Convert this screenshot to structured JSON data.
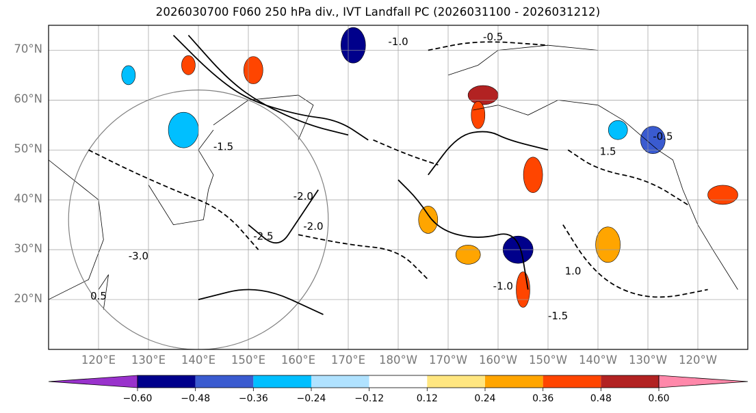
{
  "title": "2026030700 F060 250 hPa div., IVT Landfall PC (2026031100 - 2026031212)",
  "chart_data": {
    "type": "heatmap",
    "title": "2026030700 F060 250 hPa div., IVT Landfall PC (2026031100 - 2026031212)",
    "map": {
      "projection": "PlateCarree",
      "lon_range_east": [
        110,
        250
      ],
      "lat_range": [
        10,
        75
      ],
      "grid": true
    },
    "lat_ticks": [
      "20°N",
      "30°N",
      "40°N",
      "50°N",
      "60°N",
      "70°N"
    ],
    "lon_ticks": [
      "120°E",
      "130°E",
      "140°E",
      "150°E",
      "160°E",
      "170°E",
      "180°W",
      "170°W",
      "160°W",
      "150°W",
      "140°W",
      "130°W",
      "120°W"
    ],
    "colorbar": {
      "orientation": "horizontal",
      "extend": "both",
      "levels": [
        -0.72,
        -0.6,
        -0.48,
        -0.36,
        -0.24,
        -0.12,
        0.12,
        0.24,
        0.36,
        0.48,
        0.6,
        0.72
      ],
      "colors": [
        "#9932cc",
        "#00008b",
        "#3a5bd0",
        "#00bfff",
        "#b0e2ff",
        "#ffffff",
        "#ffe680",
        "#ffa500",
        "#ff4500",
        "#b22222",
        "#ff88aa"
      ],
      "tick_labels": [
        "−0.60",
        "−0.48",
        "−0.36",
        "−0.24",
        "−0.12",
        "0.12",
        "0.24",
        "0.36",
        "0.48",
        "0.60"
      ]
    },
    "contour_labels": [
      "-0.5",
      "-1.0",
      "-1.5",
      "-2.0",
      "-2.5",
      "-3.0",
      "0.5",
      "1.0",
      "1.5"
    ],
    "shaded_regions": [
      {
        "lon": 138,
        "lat": 67,
        "value": 0.4
      },
      {
        "lon": 151,
        "lat": 66,
        "value": 0.4
      },
      {
        "lon": 171,
        "lat": 71,
        "value": -0.5
      },
      {
        "lon": 197,
        "lat": 61,
        "value": 0.55
      },
      {
        "lon": 196,
        "lat": 57,
        "value": 0.45
      },
      {
        "lon": 207,
        "lat": 45,
        "value": 0.45
      },
      {
        "lon": 194,
        "lat": 29,
        "value": 0.3
      },
      {
        "lon": 204,
        "lat": 30,
        "value": -0.6
      },
      {
        "lon": 205,
        "lat": 22,
        "value": 0.4
      },
      {
        "lon": 224,
        "lat": 54,
        "value": -0.3
      },
      {
        "lon": 231,
        "lat": 52,
        "value": -0.4
      },
      {
        "lon": 137,
        "lat": 54,
        "value": -0.3
      },
      {
        "lon": 126,
        "lat": 65,
        "value": -0.3
      },
      {
        "lon": 186,
        "lat": 36,
        "value": 0.35
      },
      {
        "lon": 222,
        "lat": 31,
        "value": 0.3
      },
      {
        "lon": 245,
        "lat": 41,
        "value": 0.4
      }
    ],
    "contours": [
      {
        "kind": "solid",
        "points": [
          [
            135,
            73
          ],
          [
            143,
            65
          ],
          [
            150,
            60
          ],
          [
            160,
            57
          ],
          [
            168,
            56
          ],
          [
            174,
            52
          ]
        ]
      },
      {
        "kind": "solid",
        "points": [
          [
            138,
            73
          ],
          [
            146,
            64
          ],
          [
            153,
            59
          ],
          [
            162,
            55
          ],
          [
            170,
            53
          ]
        ]
      },
      {
        "kind": "solid",
        "points": [
          [
            186,
            45
          ],
          [
            192,
            53
          ],
          [
            198,
            54
          ],
          [
            202,
            52
          ],
          [
            210,
            50
          ]
        ]
      },
      {
        "kind": "solid",
        "points": [
          [
            180,
            44
          ],
          [
            184,
            40
          ],
          [
            188,
            34
          ],
          [
            196,
            32
          ],
          [
            204,
            34
          ],
          [
            206,
            22
          ]
        ]
      },
      {
        "kind": "solid",
        "points": [
          [
            150,
            35
          ],
          [
            156,
            30
          ],
          [
            160,
            36
          ],
          [
            164,
            42
          ]
        ]
      },
      {
        "kind": "solid",
        "points": [
          [
            140,
            20
          ],
          [
            152,
            23
          ],
          [
            165,
            17
          ]
        ]
      },
      {
        "kind": "dashed",
        "points": [
          [
            118,
            50
          ],
          [
            126,
            46
          ],
          [
            135,
            42
          ],
          [
            145,
            38
          ],
          [
            152,
            30
          ]
        ]
      },
      {
        "kind": "dashed",
        "points": [
          [
            160,
            33
          ],
          [
            170,
            31
          ],
          [
            180,
            30
          ],
          [
            186,
            24
          ]
        ]
      },
      {
        "kind": "dashed",
        "points": [
          [
            175,
            52
          ],
          [
            182,
            49
          ],
          [
            188,
            47
          ]
        ]
      },
      {
        "kind": "dashed",
        "points": [
          [
            214,
            50
          ],
          [
            220,
            46
          ],
          [
            230,
            44
          ],
          [
            238,
            39
          ]
        ]
      },
      {
        "kind": "dashed",
        "points": [
          [
            213,
            35
          ],
          [
            218,
            27
          ],
          [
            224,
            22
          ],
          [
            232,
            20
          ],
          [
            242,
            22
          ]
        ]
      },
      {
        "kind": "dashed",
        "points": [
          [
            186,
            70
          ],
          [
            196,
            72
          ],
          [
            210,
            71
          ]
        ]
      }
    ],
    "circle": {
      "center_lon": 140,
      "center_lat": 36,
      "radius_deg": 26
    }
  }
}
